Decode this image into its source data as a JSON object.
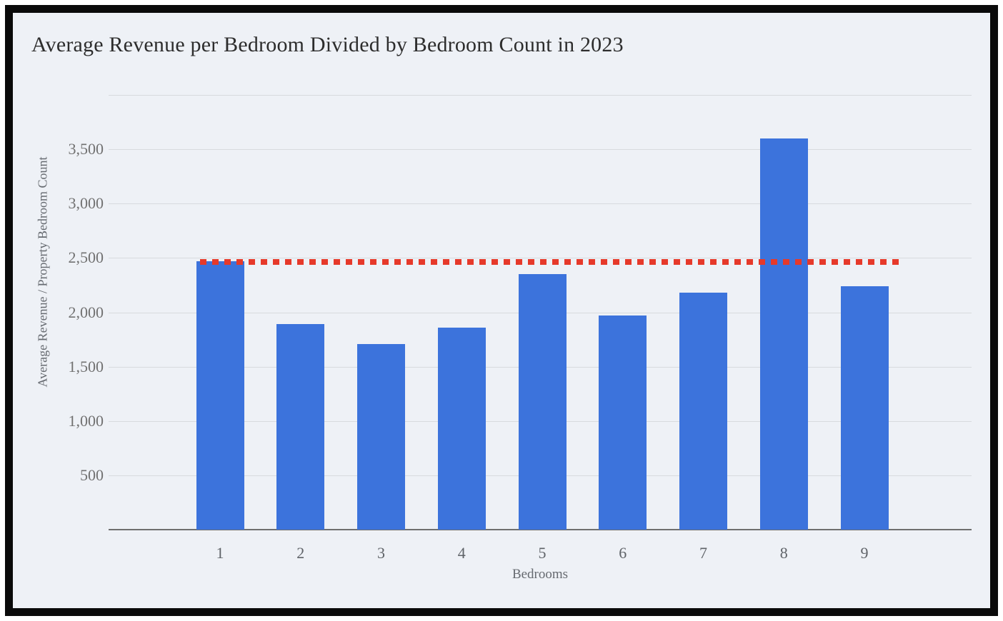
{
  "chart": {
    "title": "Average Revenue per Bedroom Divided by Bedroom Count in 2023",
    "xlabel": "Bedrooms",
    "ylabel": "Average Revenue / Property Bedroom Count"
  },
  "chart_data": {
    "type": "bar",
    "title": "Average Revenue per Bedroom Divided by Bedroom Count in 2023",
    "xlabel": "Bedrooms",
    "ylabel": "Average Revenue / Property Bedroom Count",
    "categories": [
      "1",
      "2",
      "3",
      "4",
      "5",
      "6",
      "7",
      "8",
      "9"
    ],
    "values": [
      2470,
      1890,
      1710,
      1860,
      2350,
      1970,
      2180,
      3600,
      2240
    ],
    "ylim": [
      0,
      4000
    ],
    "yticks": [
      {
        "value": 500,
        "label": "500"
      },
      {
        "value": 1000,
        "label": "1,000"
      },
      {
        "value": 1500,
        "label": "1,500"
      },
      {
        "value": 2000,
        "label": "2,000"
      },
      {
        "value": 2500,
        "label": "2,500"
      },
      {
        "value": 3000,
        "label": "3,000"
      },
      {
        "value": 3500,
        "label": "3,500"
      }
    ],
    "grid": true,
    "legend": "none",
    "reference_line": {
      "value": 2460,
      "style": "dotted",
      "color": "#e6392a"
    },
    "colors": {
      "bar": "#3c73dc",
      "reference": "#e6392a",
      "background": "#eef1f6",
      "gridline": "#d7dade",
      "axis": "#6f6f6f",
      "frame_border": "#0a0a0a",
      "title_text": "#2d2d2d",
      "tick_text": "#717171"
    }
  }
}
